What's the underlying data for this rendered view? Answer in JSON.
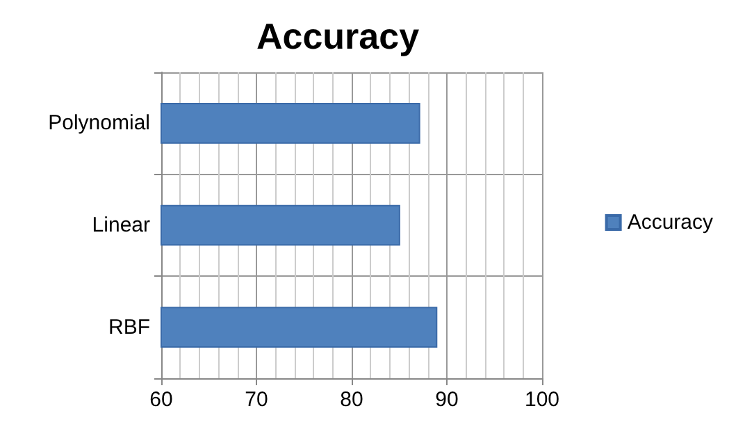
{
  "chart_data": {
    "type": "bar",
    "orientation": "horizontal",
    "title": "Accuracy",
    "categories": [
      "Polynomial",
      "Linear",
      "RBF"
    ],
    "series": [
      {
        "name": "Accuracy",
        "color": "#4f81bd",
        "values": [
          87.2,
          85.1,
          89.0
        ]
      }
    ],
    "xlim": [
      60,
      100
    ],
    "xticks": [
      60,
      70,
      80,
      90,
      100
    ],
    "grid": true,
    "legend": "right"
  }
}
